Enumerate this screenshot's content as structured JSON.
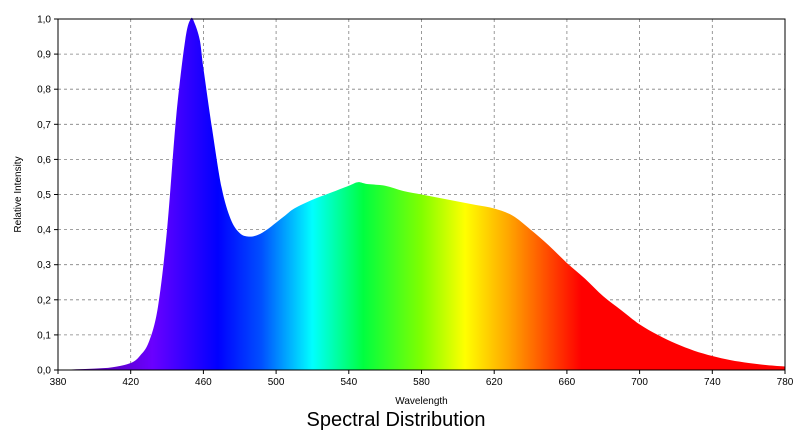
{
  "chart_data": {
    "type": "area",
    "title": "Spectral Distribution",
    "xlabel": "Wavelength",
    "ylabel": "Relative Intensity",
    "xlim": [
      380,
      780
    ],
    "ylim": [
      0,
      1.0
    ],
    "grid": true,
    "x_ticks": [
      "380",
      "420",
      "460",
      "500",
      "540",
      "580",
      "620",
      "660",
      "700",
      "740",
      "780"
    ],
    "y_ticks": [
      "0,0",
      "0,1",
      "0,2",
      "0,3",
      "0,4",
      "0,5",
      "0,6",
      "0,7",
      "0,8",
      "0,9",
      "1,0"
    ],
    "series": [
      {
        "x": [
          380,
          390,
          400,
          410,
          420,
          425,
          430,
          435,
          440,
          445,
          450,
          453,
          455,
          458,
          460,
          465,
          470,
          475,
          480,
          485,
          490,
          495,
          500,
          505,
          510,
          520,
          530,
          540,
          545,
          550,
          560,
          570,
          580,
          590,
          600,
          610,
          620,
          630,
          640,
          650,
          660,
          670,
          680,
          690,
          700,
          710,
          720,
          730,
          740,
          750,
          760,
          770,
          780
        ],
        "y": [
          0.0,
          0.002,
          0.004,
          0.008,
          0.02,
          0.04,
          0.08,
          0.18,
          0.4,
          0.72,
          0.94,
          1.0,
          0.99,
          0.94,
          0.86,
          0.68,
          0.52,
          0.43,
          0.39,
          0.38,
          0.385,
          0.4,
          0.42,
          0.44,
          0.46,
          0.485,
          0.505,
          0.525,
          0.535,
          0.53,
          0.525,
          0.51,
          0.5,
          0.49,
          0.48,
          0.47,
          0.46,
          0.44,
          0.4,
          0.355,
          0.305,
          0.26,
          0.21,
          0.17,
          0.13,
          0.1,
          0.075,
          0.055,
          0.04,
          0.028,
          0.02,
          0.014,
          0.01
        ]
      }
    ]
  }
}
